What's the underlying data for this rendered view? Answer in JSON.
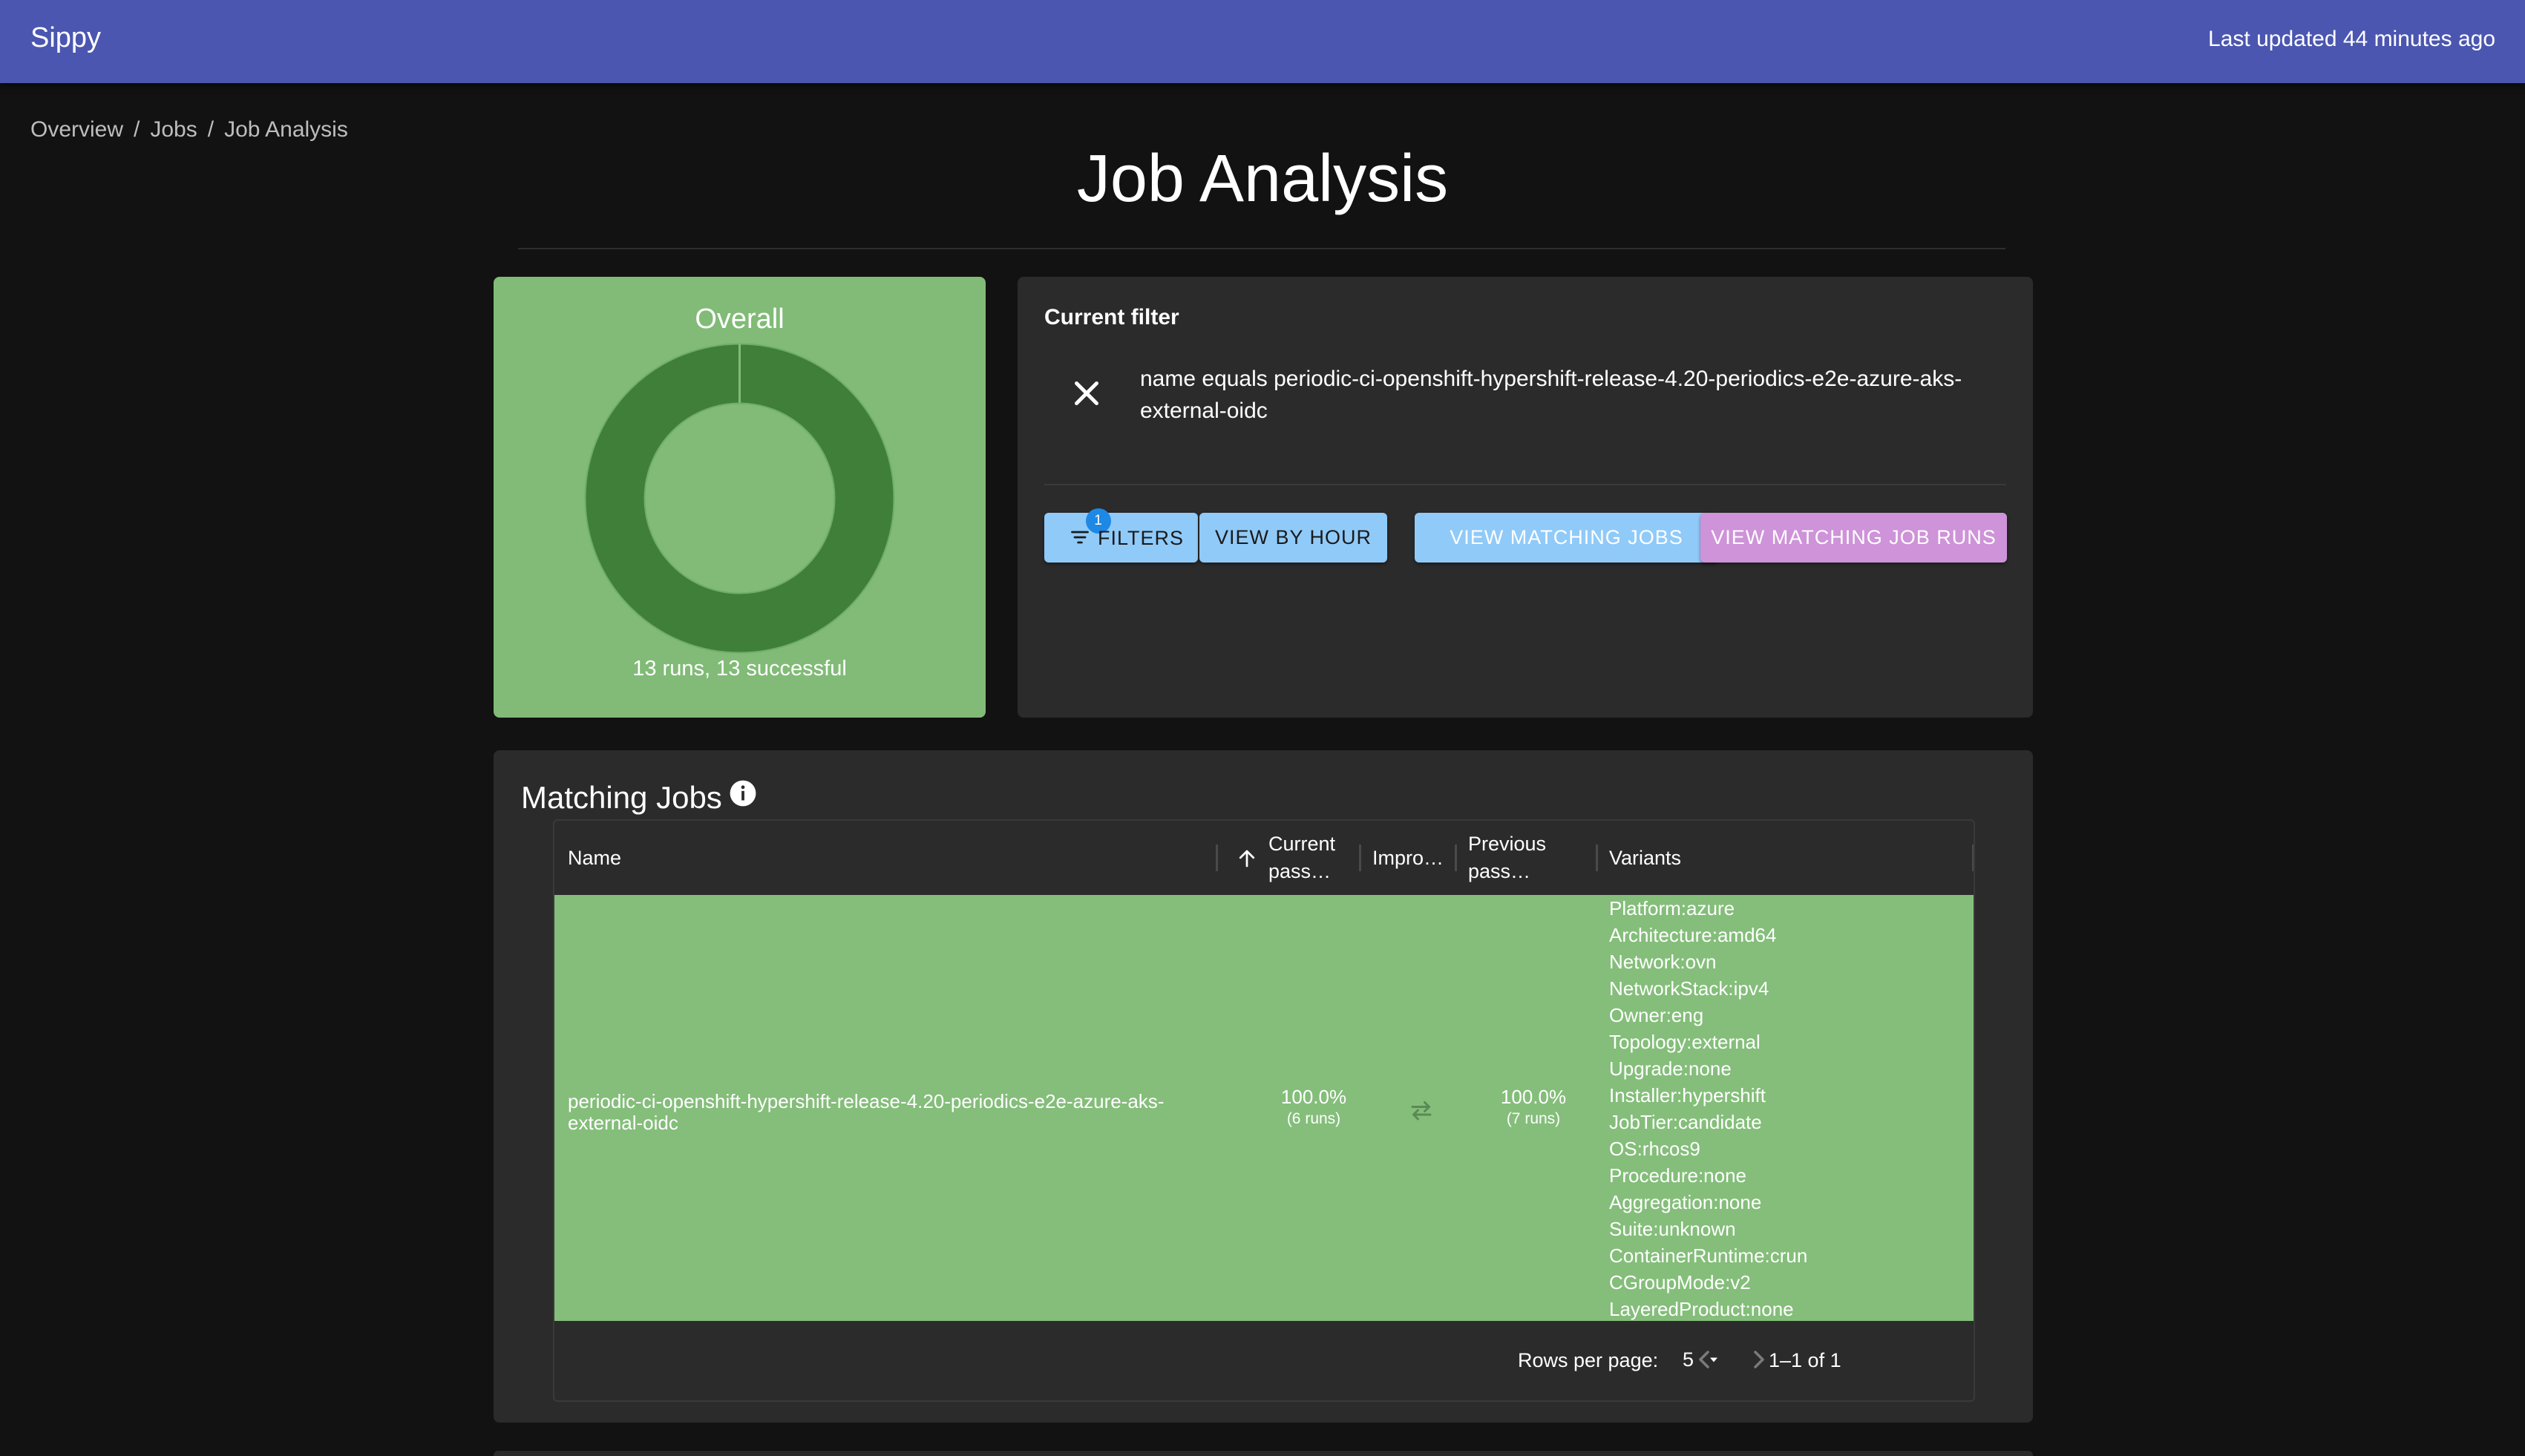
{
  "appbar": {
    "brand": "Sippy",
    "updated": "Last updated 44 minutes ago"
  },
  "breadcrumb": {
    "overview": "Overview",
    "jobs": "Jobs",
    "current": "Job Analysis",
    "sep": "/"
  },
  "page": {
    "title": "Job Analysis"
  },
  "summary": {
    "label": "Overall",
    "runs_text": "13 runs, 13 successful",
    "success_fraction": 1.0,
    "colors": {
      "card": "#81bb77",
      "ring": "#3f7f3a"
    }
  },
  "filter": {
    "heading": "Current filter",
    "text": "name equals periodic-ci-openshift-hypershift-release-4.20-periodics-e2e-azure-aks-external-oidc",
    "close_icon": "close-icon"
  },
  "buttons": {
    "filters": "FILTERS",
    "filters_badge": "1",
    "view_by_hour": "VIEW BY HOUR",
    "view_matching_jobs": "VIEW MATCHING JOBS",
    "view_matching_job_runs": "VIEW MATCHING JOB RUNS"
  },
  "jobs": {
    "heading": "Matching Jobs",
    "info_icon": "info-icon",
    "columns": {
      "name": "Name",
      "current_pass_1": "Current",
      "current_pass_2": "pass…",
      "improvement": "Impro…",
      "previous_pass_1": "Previous",
      "previous_pass_2": "pass…",
      "variants": "Variants"
    },
    "rows": [
      {
        "name_line1": "periodic-ci-openshift-hypershift-release-4.20-periodics-e2e-azure-aks-",
        "name_line2": "external-oidc",
        "current_pass": "100.0%",
        "current_runs": "(6 runs)",
        "previous_pass": "100.0%",
        "previous_runs": "(7 runs)",
        "improvement_icon": "swap-horiz-icon",
        "variants": [
          "Platform:azure",
          "Architecture:amd64",
          "Network:ovn",
          "NetworkStack:ipv4",
          "Owner:eng",
          "Topology:external",
          "Upgrade:none",
          "Installer:hypershift",
          "JobTier:candidate",
          "OS:rhcos9",
          "Procedure:none",
          "Aggregation:none",
          "Suite:unknown",
          "ContainerRuntime:crun",
          "CGroupMode:v2",
          "LayeredProduct:none"
        ]
      }
    ],
    "footer": {
      "rows_per_page_label": "Rows per page:",
      "rows_per_page": "5",
      "range": "1–1 of 1"
    }
  }
}
